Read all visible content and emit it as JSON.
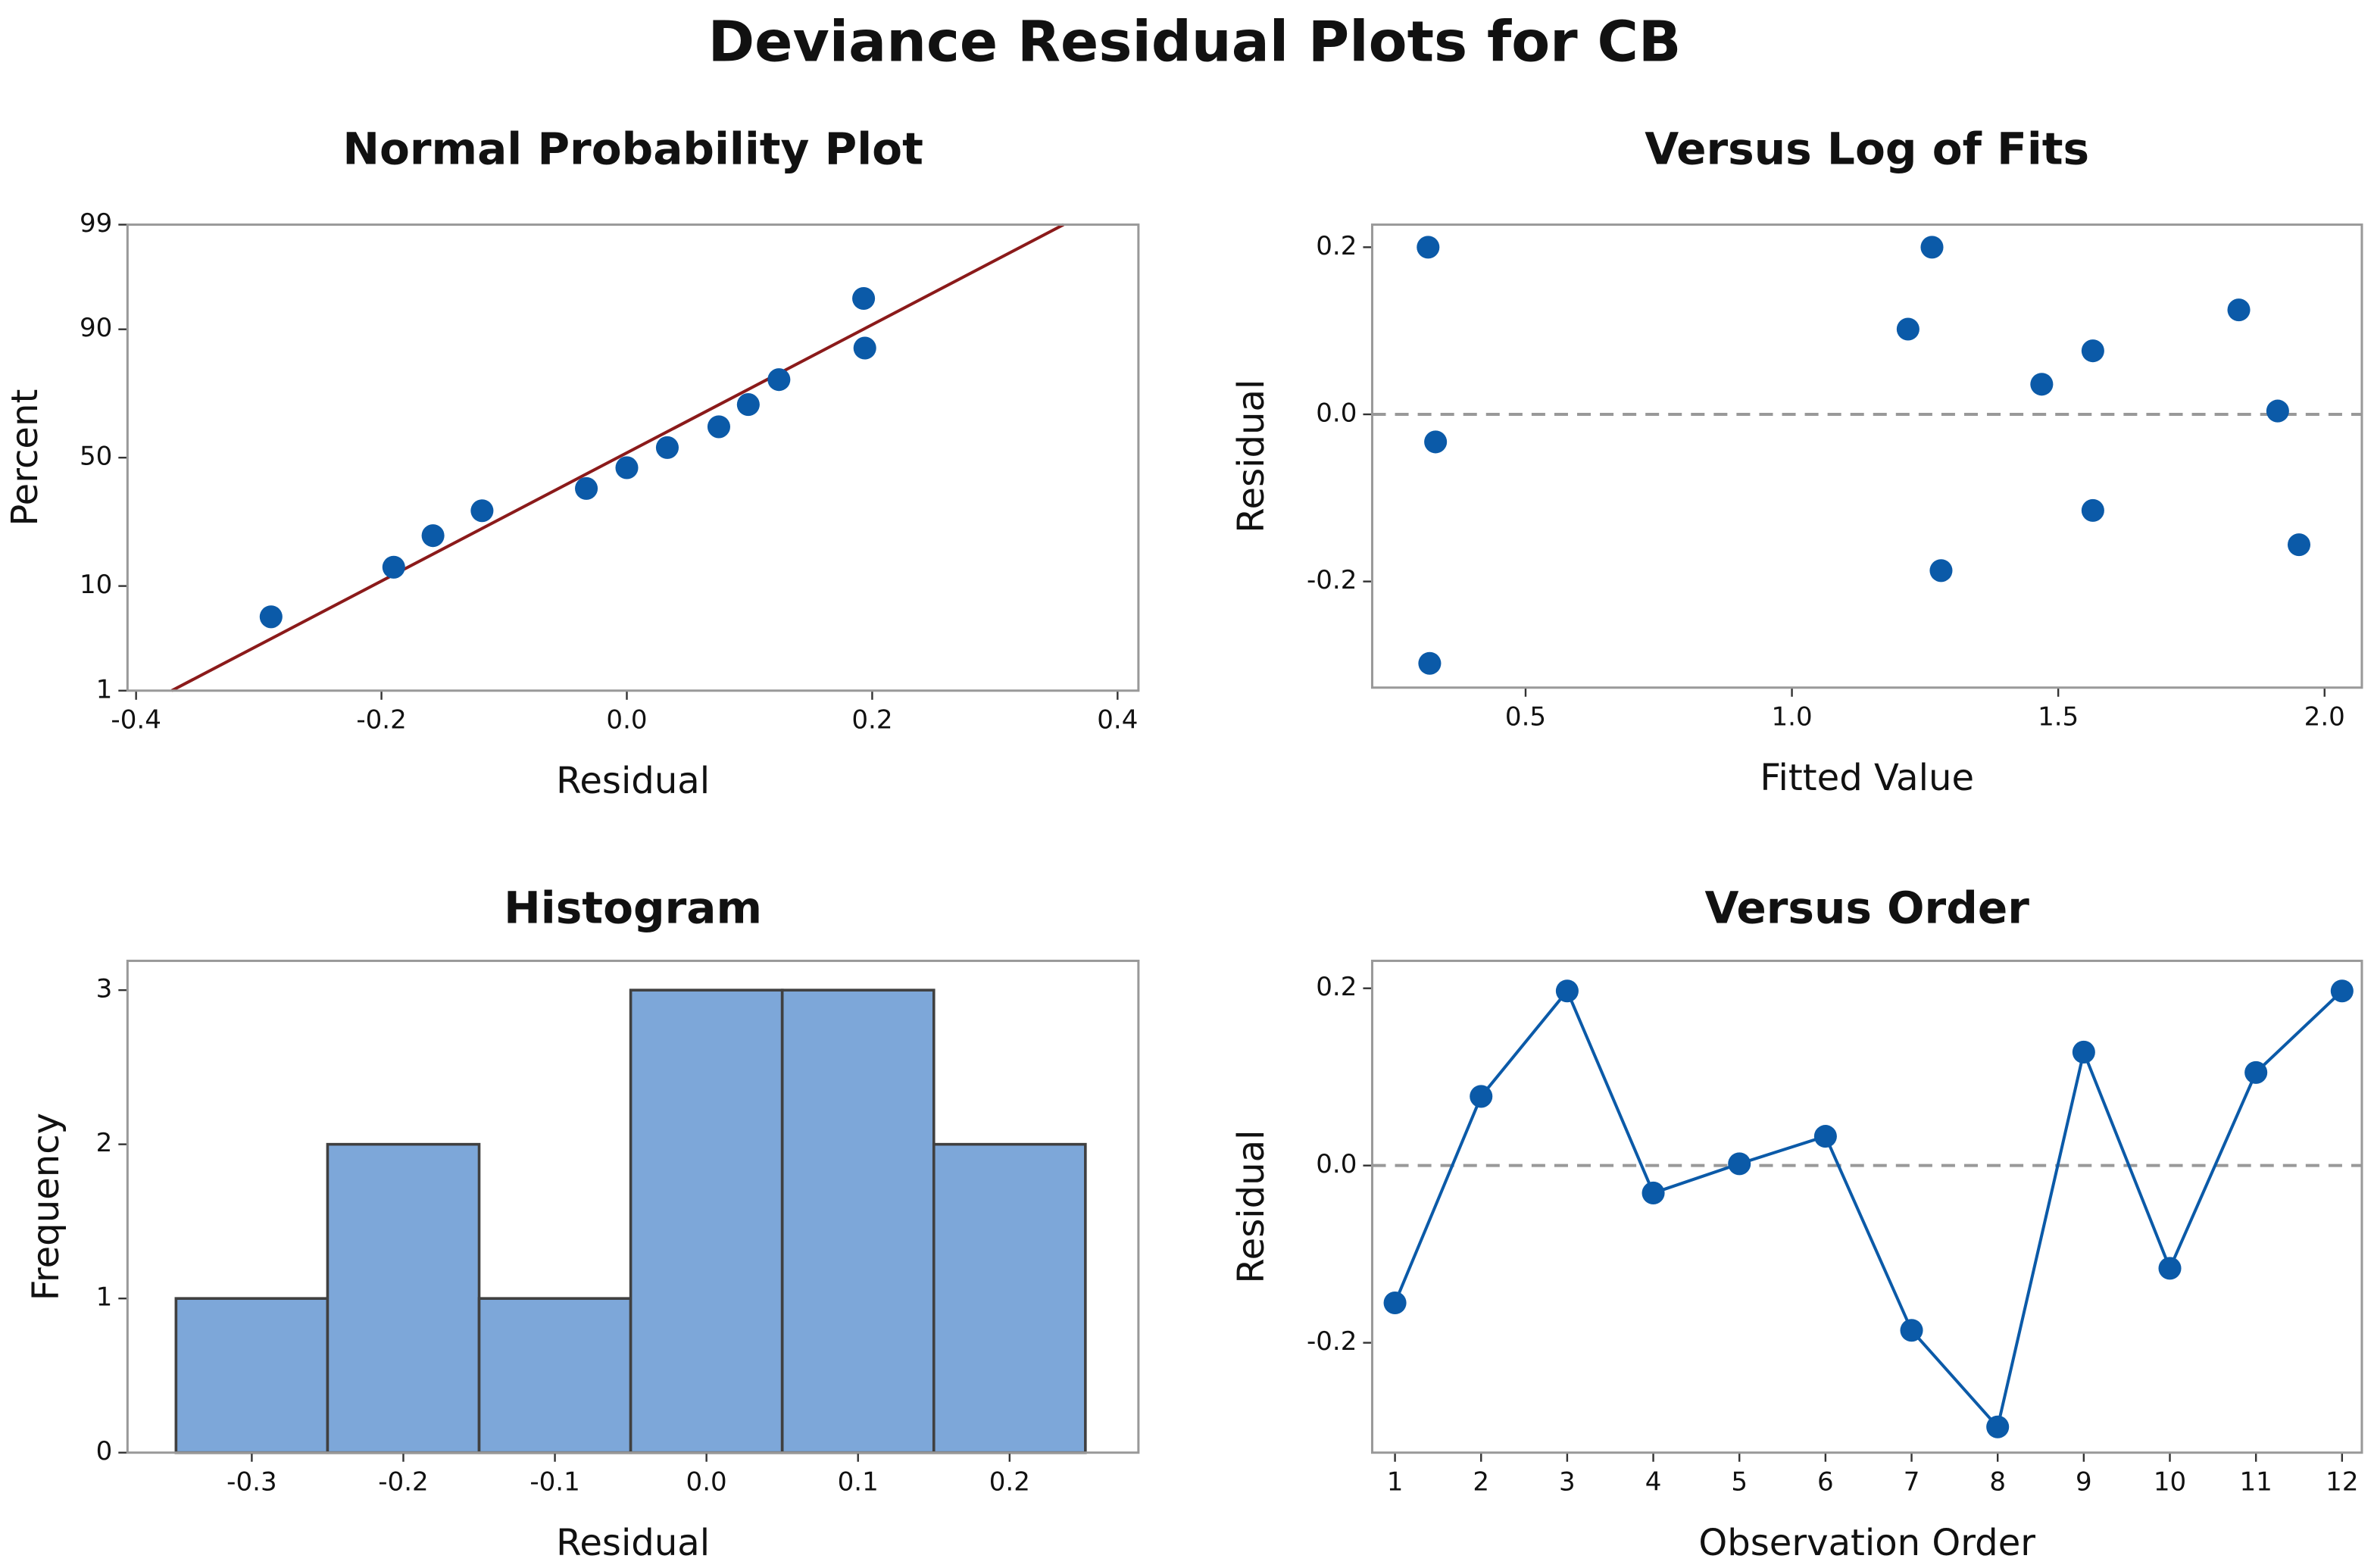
{
  "title": "Deviance Residual Plots for CB",
  "chart_data": [
    {
      "type": "scatter",
      "title": "Normal Probability Plot",
      "xlabel": "Residual",
      "ylabel": "Percent",
      "yscale": "normal-probability",
      "color": "#0b5aa8",
      "x": [
        -0.29,
        -0.19,
        -0.158,
        -0.118,
        -0.033,
        0.0,
        0.033,
        0.075,
        0.099,
        0.124,
        0.194,
        0.193
      ],
      "values": [
        5.6,
        13.7,
        21.8,
        29.8,
        37.9,
        46.0,
        54.0,
        62.1,
        70.2,
        78.2,
        86.3,
        94.4
      ],
      "fit_line": {
        "x": [
          -0.371,
          0.356
        ],
        "y": [
          1,
          99
        ],
        "color": "#8b1a1a"
      },
      "xlim": [
        -0.407,
        0.417
      ],
      "ylim": [
        1,
        99
      ],
      "xticks": [
        -0.4,
        -0.2,
        {
          "value": 0,
          "label": "0.0"
        },
        0.2,
        0.4
      ],
      "yticks": [
        1,
        10,
        50,
        90,
        99
      ]
    },
    {
      "type": "scatter",
      "title": "Versus Log of Fits",
      "xlabel": "Fitted Value",
      "ylabel": "Residual",
      "color": "#0b5aa8",
      "reference_line": 0,
      "x": [
        0.317,
        0.331,
        0.32,
        1.218,
        1.263,
        1.28,
        1.469,
        1.565,
        1.565,
        1.839,
        1.912,
        1.952
      ],
      "values": [
        0.2,
        -0.033,
        -0.298,
        0.102,
        0.2,
        -0.187,
        0.036,
        0.076,
        -0.115,
        0.125,
        0.004,
        -0.156
      ],
      "xlim": [
        0.212,
        2.07
      ],
      "ylim": [
        -0.327,
        0.227
      ],
      "xticks": [
        0.5,
        {
          "value": 1,
          "label": "1.0"
        },
        1.5,
        {
          "value": 2,
          "label": "2.0"
        }
      ],
      "yticks": [
        -0.2,
        {
          "value": 0,
          "label": "0.0"
        },
        0.2
      ]
    },
    {
      "type": "histogram",
      "title": "Histogram",
      "xlabel": "Residual",
      "ylabel": "Frequency",
      "color": "#7da7d9",
      "bins": [
        -0.35,
        -0.25,
        -0.15,
        -0.05,
        0.05,
        0.15,
        0.25
      ],
      "values": [
        1,
        2,
        1,
        3,
        3,
        2
      ],
      "xlim": [
        -0.382,
        0.285
      ],
      "ylim": [
        0,
        3.19
      ],
      "xticks": [
        -0.3,
        -0.2,
        -0.1,
        {
          "value": 0,
          "label": "0.0"
        },
        0.1,
        0.2
      ],
      "yticks": [
        0,
        1,
        2,
        3
      ]
    },
    {
      "type": "line",
      "title": "Versus Order",
      "xlabel": "Observation Order",
      "ylabel": "Residual",
      "color": "#0b5aa8",
      "reference_line": 0,
      "x": [
        1,
        2,
        3,
        4,
        5,
        6,
        7,
        8,
        9,
        10,
        11,
        12
      ],
      "values": [
        -0.155,
        0.078,
        0.197,
        -0.031,
        0.002,
        0.033,
        -0.186,
        -0.295,
        0.128,
        -0.116,
        0.105,
        0.197
      ],
      "xlim": [
        0.735,
        12.23
      ],
      "ylim": [
        -0.324,
        0.231
      ],
      "xticks": [
        1,
        2,
        3,
        4,
        5,
        6,
        7,
        8,
        9,
        10,
        11,
        12
      ],
      "yticks": [
        -0.2,
        {
          "value": 0,
          "label": "0.0"
        },
        0.2
      ]
    }
  ]
}
